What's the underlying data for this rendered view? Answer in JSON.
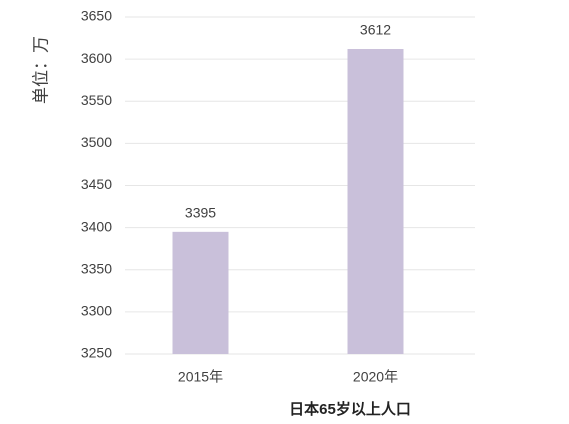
{
  "chart_data": {
    "type": "bar",
    "title": "日本65岁以上人口",
    "y_label": "单位：万",
    "categories": [
      "2015年",
      "2020年"
    ],
    "values": [
      3395,
      3612
    ],
    "color": "#c9c0da",
    "ylim": [
      3250,
      3650
    ],
    "yticks": [
      3250,
      3300,
      3350,
      3400,
      3450,
      3500,
      3550,
      3600,
      3650
    ],
    "grid": true
  }
}
